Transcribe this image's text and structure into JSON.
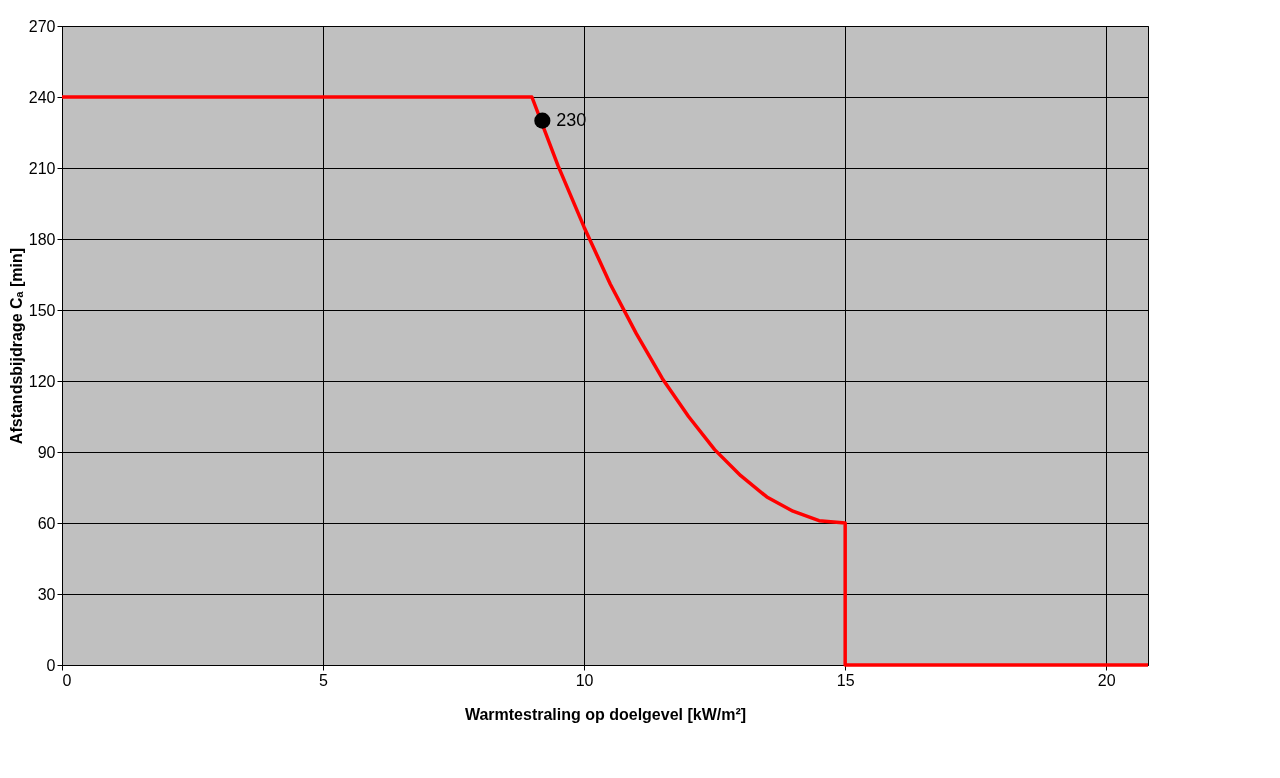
{
  "chart_data": {
    "type": "line",
    "xlabel": "Warmtestraling op doelgevel [kW/m²]",
    "ylabel": "Afstandsbijdrage Cₐ [min]",
    "xlim": [
      0,
      20.8
    ],
    "xticks": [
      0,
      5,
      10,
      15,
      20
    ],
    "ylim": [
      0,
      270
    ],
    "yticks": [
      0,
      30,
      60,
      90,
      120,
      150,
      180,
      210,
      240,
      270
    ],
    "grid": true,
    "line_style": "solid",
    "series": [
      {
        "color": "#ff0000",
        "marker": "none",
        "x": [
          0,
          9,
          9.5,
          10,
          10.5,
          11,
          11.5,
          12,
          12.5,
          13,
          13.5,
          14,
          14.5,
          15,
          15,
          20.8
        ],
        "values": [
          240,
          240,
          211,
          185,
          161,
          140,
          121,
          105,
          91,
          80,
          71,
          65,
          61,
          60,
          0,
          0
        ]
      },
      {
        "type": "scatter",
        "color": "#000000",
        "marker": "circle",
        "x": [
          9.2
        ],
        "values": [
          230
        ]
      }
    ],
    "annotations": [
      {
        "text": "230",
        "x": 9.2,
        "y": 230
      }
    ]
  }
}
